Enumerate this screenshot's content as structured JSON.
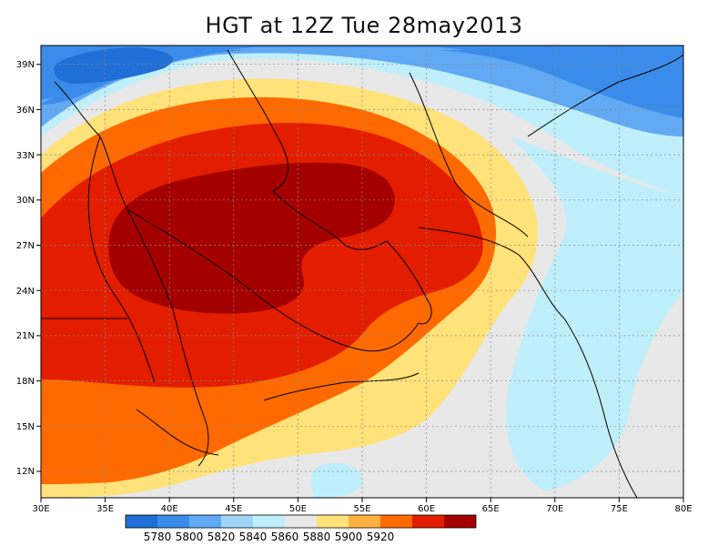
{
  "title": "HGT at 12Z Tue 28may2013",
  "colors": {
    "c5780": "#1f6fd6",
    "c5800": "#3b8cea",
    "c5820": "#62a9f3",
    "c5840": "#9fd6f7",
    "c5860": "#bfeffb",
    "c5880": "#e8e8e8",
    "c5900": "#ffe27a",
    "c5920": "#ffb040",
    "c5940": "#ff6a00",
    "c5960": "#e21d00",
    "c5980": "#a50000"
  },
  "colorbar": {
    "labels": [
      "5780",
      "5800",
      "5820",
      "5840",
      "5860",
      "5880",
      "5900",
      "5920"
    ]
  },
  "axes": {
    "lon_labels": [
      "30E",
      "35E",
      "40E",
      "45E",
      "50E",
      "55E",
      "60E",
      "65E",
      "70E",
      "75E",
      "80E"
    ],
    "lat_labels": [
      "39N",
      "36N",
      "33N",
      "30N",
      "27N",
      "24N",
      "21N",
      "18N",
      "15N",
      "12N"
    ]
  },
  "chart_data": {
    "type": "heatmap",
    "title": "HGT at 12Z Tue 28may2013",
    "variable": "HGT",
    "units_levels": [
      5780,
      5800,
      5820,
      5840,
      5860,
      5880,
      5900,
      5920
    ],
    "x_range": [
      "30E",
      "80E"
    ],
    "y_range": [
      "10N",
      "40N"
    ],
    "grid": true,
    "max_region": "central Arabian Peninsula (~38E–57E, 25N–31N), above 5920",
    "min_region": "north-west corner (~33E–45E, 38N–40N), below 5780"
  }
}
